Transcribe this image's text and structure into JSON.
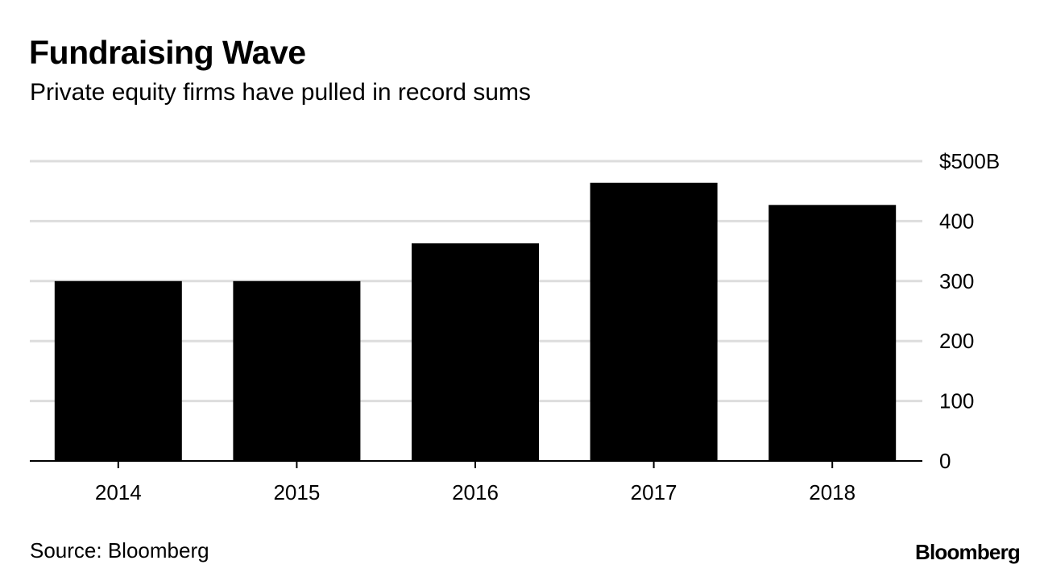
{
  "header": {
    "title": "Fundraising Wave",
    "subtitle": "Private equity firms have pulled in record sums"
  },
  "footer": {
    "source": "Source: Bloomberg",
    "brand": "Bloomberg"
  },
  "chart_data": {
    "type": "bar",
    "title": "Fundraising Wave",
    "subtitle": "Private equity firms have pulled in record sums",
    "xlabel": "",
    "ylabel": "",
    "categories": [
      "2014",
      "2015",
      "2016",
      "2017",
      "2018"
    ],
    "values": [
      300,
      300,
      363,
      464,
      427
    ],
    "ylim": [
      0,
      500
    ],
    "yticks": [
      {
        "value": 0,
        "label": "0"
      },
      {
        "value": 100,
        "label": "100"
      },
      {
        "value": 200,
        "label": "200"
      },
      {
        "value": 300,
        "label": "300"
      },
      {
        "value": 400,
        "label": "400"
      },
      {
        "value": 500,
        "label": "$500B"
      }
    ],
    "grid": true,
    "y_axis_side": "right",
    "legend": "none",
    "colors": {
      "bar": "#000000",
      "grid": "#dddddd",
      "axis": "#000000"
    }
  }
}
